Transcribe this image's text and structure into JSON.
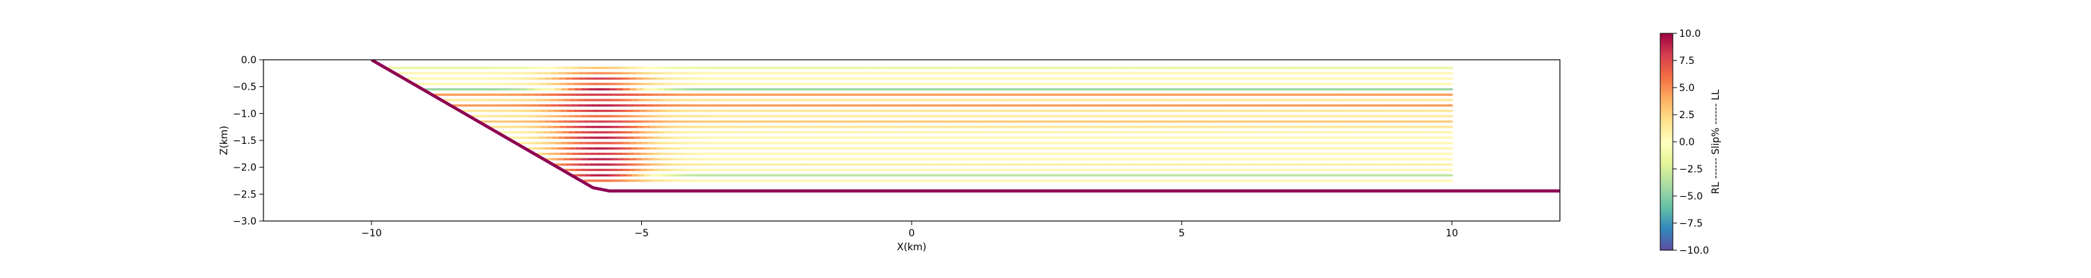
{
  "chart_data": {
    "type": "line",
    "xlabel": "X(km)",
    "ylabel": "Z(km)",
    "xlim": [
      -12,
      12
    ],
    "ylim": [
      -3.0,
      0.0
    ],
    "xticks": [
      {
        "value": -10,
        "label": "−10"
      },
      {
        "value": -5,
        "label": "−5"
      },
      {
        "value": 0,
        "label": "0"
      },
      {
        "value": 5,
        "label": "5"
      },
      {
        "value": 10,
        "label": "10"
      }
    ],
    "yticks": [
      {
        "value": 0.0,
        "label": "0.0"
      },
      {
        "value": -0.5,
        "label": "−0.5"
      },
      {
        "value": -1.0,
        "label": "−1.0"
      },
      {
        "value": -1.5,
        "label": "−1.5"
      },
      {
        "value": -2.0,
        "label": "−2.0"
      },
      {
        "value": -2.5,
        "label": "−2.5"
      },
      {
        "value": -3.0,
        "label": "−3.0"
      }
    ],
    "grid": false,
    "fault": {
      "color": "#8e0152",
      "x": [
        -10,
        -5.9,
        -5.6,
        12
      ],
      "y": [
        0.0,
        -2.38,
        -2.44,
        -2.44
      ]
    },
    "slip_lines": {
      "x_start": -11,
      "x_end": 10,
      "bend_x": -5.9,
      "bend_half_width": 0.8,
      "depths": [
        -0.15,
        -0.25,
        -0.35,
        -0.45,
        -0.55,
        -0.65,
        -0.75,
        -0.85,
        -0.95,
        -1.05,
        -1.15,
        -1.25,
        -1.35,
        -1.45,
        -1.55,
        -1.65,
        -1.75,
        -1.85,
        -1.95,
        -2.05,
        -2.15,
        -2.25
      ],
      "slip_percent_far": [
        -1.5,
        0.5,
        0.5,
        0.5,
        -4.5,
        4.5,
        1.5,
        4.5,
        1.5,
        1.5,
        3.0,
        1.5,
        0.5,
        0.5,
        0.5,
        0.5,
        0.5,
        0.5,
        1.0,
        0.5,
        -3.5,
        0.5
      ],
      "slip_percent_near_fault": [
        3,
        5,
        8,
        6,
        9,
        8,
        7,
        9,
        8,
        6,
        8,
        9,
        8,
        9,
        7,
        9,
        8,
        9,
        9,
        8,
        9,
        6
      ]
    },
    "colorbar": {
      "label": "RL ------ Slip% ------ LL",
      "min": -10.0,
      "max": 10.0,
      "ticks": [
        {
          "value": 10.0,
          "label": "10.0"
        },
        {
          "value": 7.5,
          "label": "7.5"
        },
        {
          "value": 5.0,
          "label": "5.0"
        },
        {
          "value": 2.5,
          "label": "2.5"
        },
        {
          "value": 0.0,
          "label": "0.0"
        },
        {
          "value": -2.5,
          "label": "−2.5"
        },
        {
          "value": -5.0,
          "label": "−5.0"
        },
        {
          "value": -7.5,
          "label": "−7.5"
        },
        {
          "value": -10.0,
          "label": "−10.0"
        }
      ],
      "colormap": "Spectral_r",
      "colormap_stops": [
        "#5e4fa2",
        "#3288bd",
        "#66c2a5",
        "#abdda4",
        "#e6f598",
        "#ffffbf",
        "#fee08b",
        "#fdae61",
        "#f46d43",
        "#d53e4f",
        "#9e0142"
      ]
    }
  }
}
